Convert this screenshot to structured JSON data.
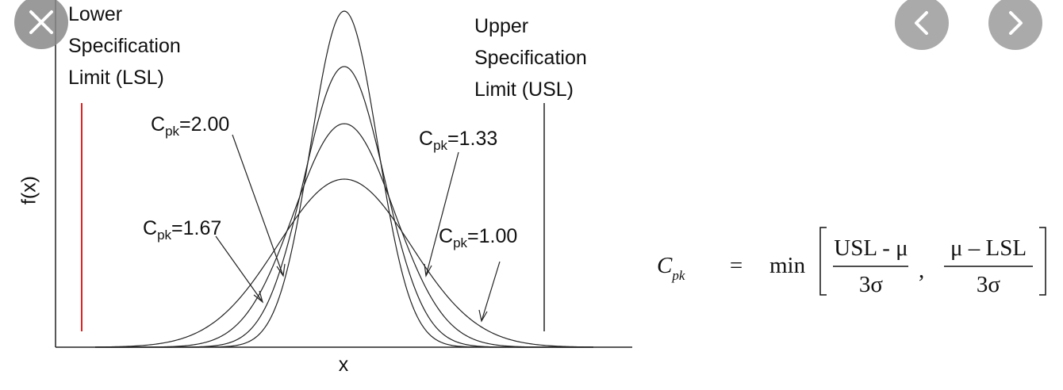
{
  "diagram": {
    "lsl_label": [
      "Lower",
      "Specification",
      "Limit (LSL)"
    ],
    "usl_label": [
      "Upper",
      "Specification",
      "Limit (USL)"
    ],
    "y_axis_label": "f(x)",
    "x_axis_label": "x",
    "curves": [
      {
        "symbol": "C",
        "subscript": "pk",
        "equals": "=",
        "value": "2.00"
      },
      {
        "symbol": "C",
        "subscript": "pk",
        "equals": "=",
        "value": "1.67"
      },
      {
        "symbol": "C",
        "subscript": "pk",
        "equals": "=",
        "value": "1.33"
      },
      {
        "symbol": "C",
        "subscript": "pk",
        "equals": "=",
        "value": "1.00"
      }
    ],
    "formula": {
      "symbol": "C",
      "subscript": "pk",
      "equals": "=",
      "operator": "min",
      "numerator_1": "USL - μ",
      "denominator_1": "3σ",
      "separator": ",",
      "numerator_2": "μ – LSL",
      "denominator_2": "3σ"
    }
  }
}
